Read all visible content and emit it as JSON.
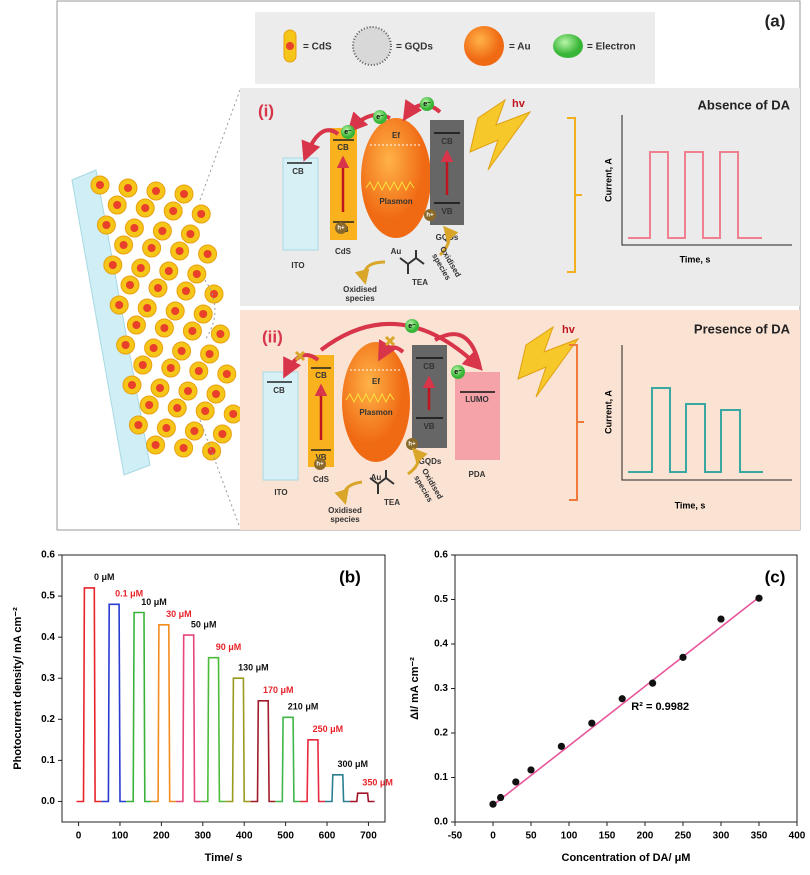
{
  "diagram": {
    "panel_label": "(a)",
    "legend": [
      "= CdS",
      "= GQDs",
      "= Au",
      "= Electron"
    ],
    "sub": [
      {
        "label": "(i)",
        "title": "Absence of DA",
        "hv": "hv",
        "cb": "CB",
        "vb": "VB",
        "ito": "ITO",
        "cds": "CdS",
        "au": "Au",
        "gqds": "GQDs",
        "tea": "TEA",
        "plasmon": "Plasmon",
        "ef": "Ef",
        "electron": "e⁻",
        "hole": "h+",
        "oxidised": [
          "Oxidised",
          "species"
        ],
        "y_label": "Current, A",
        "x_label": "Time, s"
      },
      {
        "label": "(ii)",
        "title": "Presence of DA",
        "hv": "hv",
        "cb": "CB",
        "vb": "VB",
        "lumo": "LUMO",
        "ito": "ITO",
        "cds": "CdS",
        "au": "Au",
        "gqds": "GQDs",
        "pda": "PDA",
        "tea": "TEA",
        "plasmon": "Plasmon",
        "ef": "Ef",
        "electron": "e⁻",
        "hole": "h+",
        "oxidised": [
          "Oxidised",
          "species"
        ],
        "y_label": "Current, A",
        "x_label": "Time, s"
      }
    ]
  },
  "chart_data": [
    {
      "type": "line",
      "panel_label": "(b)",
      "x_label": "Time/ s",
      "y_label": "Photocurrent density/ mA cm⁻²",
      "xlim": [
        -40,
        740
      ],
      "ylim": [
        -0.05,
        0.6
      ],
      "xticks": [
        0,
        100,
        200,
        300,
        400,
        500,
        600,
        700
      ],
      "yticks": [
        {
          "value": 0,
          "label": "0.0"
        },
        0.1,
        0.2,
        0.3,
        0.4,
        0.5,
        0.6
      ],
      "grid": false,
      "series": [
        {
          "name": "0 μM",
          "color": "#e8232a",
          "label_color": "#111111",
          "x": [
            -5,
            12,
            14,
            38,
            40,
            55
          ],
          "values": [
            0,
            0,
            0.52,
            0.52,
            0,
            0
          ]
        },
        {
          "name": "0.1 μM",
          "color": "#2a3bd0",
          "label_color": "#e8232a",
          "x": [
            55,
            72,
            74,
            98,
            100,
            115
          ],
          "values": [
            0,
            0,
            0.48,
            0.48,
            0,
            0
          ]
        },
        {
          "name": "10 μM",
          "color": "#3ab23a",
          "label_color": "#111111",
          "x": [
            115,
            132,
            134,
            158,
            160,
            175
          ],
          "values": [
            0,
            0,
            0.46,
            0.46,
            0,
            0
          ]
        },
        {
          "name": "30 μM",
          "color": "#f28c1e",
          "label_color": "#e8232a",
          "x": [
            175,
            192,
            194,
            218,
            220,
            235
          ],
          "values": [
            0,
            0,
            0.43,
            0.43,
            0,
            0
          ]
        },
        {
          "name": "50 μM",
          "color": "#e8457a",
          "label_color": "#111111",
          "x": [
            235,
            252,
            254,
            278,
            280,
            295
          ],
          "values": [
            0,
            0,
            0.405,
            0.405,
            0,
            0
          ]
        },
        {
          "name": "90 μM",
          "color": "#4cbb3a",
          "label_color": "#e8232a",
          "x": [
            295,
            312,
            314,
            338,
            340,
            355
          ],
          "values": [
            0,
            0,
            0.35,
            0.35,
            0,
            0
          ]
        },
        {
          "name": "130 μM",
          "color": "#9a9a1e",
          "label_color": "#111111",
          "x": [
            355,
            372,
            374,
            398,
            400,
            415
          ],
          "values": [
            0,
            0,
            0.3,
            0.3,
            0,
            0
          ]
        },
        {
          "name": "170 μM",
          "color": "#a01c2c",
          "label_color": "#e8232a",
          "x": [
            415,
            432,
            434,
            458,
            460,
            475
          ],
          "values": [
            0,
            0,
            0.245,
            0.245,
            0,
            0
          ]
        },
        {
          "name": "210 μM",
          "color": "#3fb54a",
          "label_color": "#111111",
          "x": [
            475,
            492,
            494,
            518,
            520,
            535
          ],
          "values": [
            0,
            0,
            0.205,
            0.205,
            0,
            0
          ]
        },
        {
          "name": "250 μM",
          "color": "#e8293f",
          "label_color": "#e8232a",
          "x": [
            535,
            552,
            554,
            578,
            580,
            595
          ],
          "values": [
            0,
            0,
            0.15,
            0.15,
            0,
            0
          ]
        },
        {
          "name": "300 μM",
          "color": "#2a7f8f",
          "label_color": "#111111",
          "x": [
            595,
            612,
            614,
            638,
            640,
            655
          ],
          "values": [
            0,
            0,
            0.065,
            0.065,
            0,
            0
          ]
        },
        {
          "name": "350 μM",
          "color": "#a3142a",
          "label_color": "#e8232a",
          "x": [
            655,
            672,
            674,
            698,
            700,
            715
          ],
          "values": [
            0,
            0,
            0.02,
            0.02,
            0,
            0
          ]
        }
      ]
    },
    {
      "type": "scatter",
      "panel_label": "(c)",
      "x_label": "Concentration of DA/ μM",
      "y_label": "ΔI/ mA cm⁻²",
      "xlim": [
        -50,
        400
      ],
      "ylim": [
        0,
        0.6
      ],
      "xticks": [
        -50,
        0,
        50,
        100,
        150,
        200,
        250,
        300,
        350,
        400
      ],
      "yticks": [
        {
          "value": 0,
          "label": "0.0"
        },
        0.1,
        0.2,
        0.3,
        0.4,
        0.5,
        0.6
      ],
      "grid": false,
      "series": [
        {
          "color": "#111111",
          "x": [
            0,
            10,
            30,
            50,
            90,
            130,
            170,
            210,
            250,
            300,
            350
          ],
          "values": [
            0.04,
            0.055,
            0.09,
            0.117,
            0.17,
            0.222,
            0.277,
            0.312,
            0.37,
            0.456,
            0.503
          ]
        }
      ],
      "fit_line": {
        "color": "#e8559b",
        "x": [
          0,
          350
        ],
        "values": [
          0.038,
          0.505
        ]
      },
      "annotation": "R² = 0.9982"
    }
  ]
}
